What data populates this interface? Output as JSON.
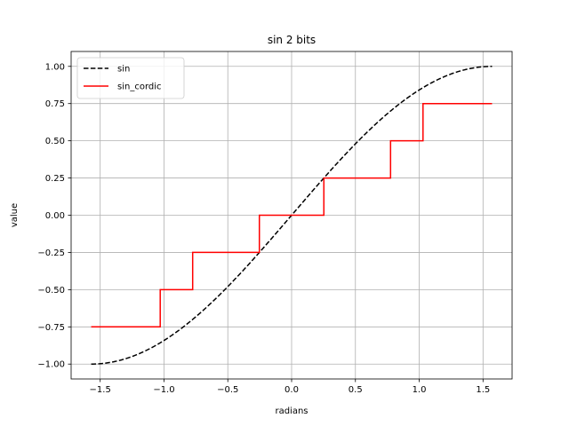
{
  "chart_data": {
    "type": "line",
    "title": "sin 2 bits",
    "xlabel": "radians",
    "ylabel": "value",
    "xlim": [
      -1.7279,
      1.7279
    ],
    "ylim": [
      -1.1,
      1.1
    ],
    "xticks": [
      -1.5,
      -1.0,
      -0.5,
      0.0,
      0.5,
      1.0,
      1.5
    ],
    "xtick_labels": [
      "−1.5",
      "−1.0",
      "−0.5",
      "0.0",
      "0.5",
      "1.0",
      "1.5"
    ],
    "yticks": [
      -1.0,
      -0.75,
      -0.5,
      -0.25,
      0.0,
      0.25,
      0.5,
      0.75,
      1.0
    ],
    "ytick_labels": [
      "−1.00",
      "−0.75",
      "−0.50",
      "−0.25",
      "0.00",
      "0.25",
      "0.50",
      "0.75",
      "1.00"
    ],
    "grid": true,
    "legend_position": "top-left",
    "series": [
      {
        "name": "sin",
        "color": "#000000",
        "style": "dashed",
        "function": "sin",
        "x_range": [
          -1.5708,
          1.5708
        ]
      },
      {
        "name": "sin_cordic",
        "color": "#ff0000",
        "style": "solid",
        "x_range": [
          -1.5708,
          1.5708
        ],
        "step_edges": [
          -1.0297,
          -0.7754,
          -0.2527,
          0.2527,
          0.7754,
          1.0297
        ],
        "step_values": [
          -0.75,
          -0.5,
          -0.25,
          0.0,
          0.25,
          0.5,
          0.75
        ]
      }
    ]
  }
}
